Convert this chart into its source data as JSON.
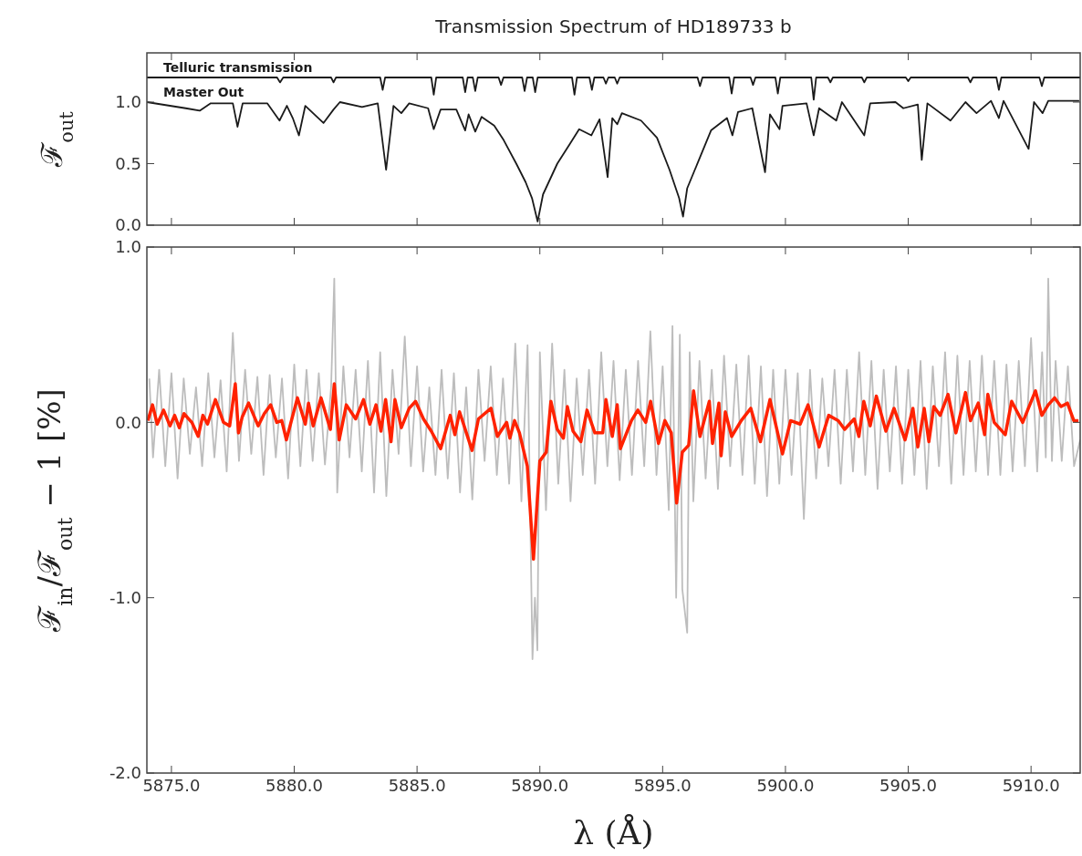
{
  "chart_data": [
    {
      "type": "line",
      "title": "Transmission Spectrum of HD189733 b",
      "ylabel": "ℱ$_{out}$",
      "xlim": [
        5874,
        5912
      ],
      "ylim": [
        0,
        1.4
      ],
      "xticks": [
        {
          "value": 5875,
          "label": null
        },
        {
          "value": 5880,
          "label": null
        },
        {
          "value": 5885,
          "label": null
        },
        {
          "value": 5890,
          "label": null
        },
        {
          "value": 5895,
          "label": null
        },
        {
          "value": 5900,
          "label": null
        },
        {
          "value": 5905,
          "label": null
        },
        {
          "value": 5910,
          "label": null
        }
      ],
      "yticks": [
        {
          "value": 0,
          "label": "0.0"
        },
        {
          "value": 0.5,
          "label": "0.5"
        },
        {
          "value": 1,
          "label": "1.0"
        }
      ],
      "tick_labels": "y",
      "series": [
        {
          "name": "Telluric transmission",
          "color": "#1a1a1a",
          "x": [
            5874,
            5879.3,
            5879.42,
            5879.55,
            5881.5,
            5881.6,
            5881.7,
            5883.5,
            5883.6,
            5883.7,
            5885.58,
            5885.68,
            5885.78,
            5886.86,
            5886.96,
            5887.06,
            5887.27,
            5887.37,
            5887.47,
            5888.32,
            5888.42,
            5888.52,
            5889.28,
            5889.38,
            5889.48,
            5889.71,
            5889.81,
            5889.91,
            5891.31,
            5891.41,
            5891.51,
            5892.02,
            5892.12,
            5892.22,
            5892.59,
            5892.69,
            5892.79,
            5893.05,
            5893.15,
            5893.25,
            5896.42,
            5896.52,
            5896.62,
            5897.71,
            5897.81,
            5897.91,
            5898.58,
            5898.68,
            5898.78,
            5899.59,
            5899.69,
            5899.79,
            5901.05,
            5901.15,
            5901.25,
            5901.73,
            5901.83,
            5901.93,
            5903.11,
            5903.21,
            5903.31,
            5904.9,
            5905,
            5905.1,
            5907.43,
            5907.53,
            5907.63,
            5908.59,
            5908.69,
            5908.79,
            5910.34,
            5910.44,
            5910.54,
            5912
          ],
          "values": [
            1.2,
            1.2,
            1.16,
            1.2,
            1.2,
            1.16,
            1.2,
            1.2,
            1.1,
            1.2,
            1.2,
            1.06,
            1.2,
            1.2,
            1.08,
            1.2,
            1.2,
            1.09,
            1.2,
            1.2,
            1.14,
            1.2,
            1.2,
            1.09,
            1.2,
            1.2,
            1.08,
            1.2,
            1.2,
            1.06,
            1.2,
            1.2,
            1.1,
            1.2,
            1.2,
            1.15,
            1.2,
            1.2,
            1.15,
            1.2,
            1.2,
            1.13,
            1.2,
            1.2,
            1.07,
            1.2,
            1.2,
            1.14,
            1.2,
            1.2,
            1.07,
            1.2,
            1.2,
            1.02,
            1.2,
            1.2,
            1.16,
            1.2,
            1.2,
            1.16,
            1.2,
            1.2,
            1.17,
            1.2,
            1.2,
            1.16,
            1.2,
            1.2,
            1.1,
            1.2,
            1.2,
            1.13,
            1.2,
            1.2
          ]
        },
        {
          "name": "Master Out",
          "color": "#1a1a1a",
          "x": [
            5874,
            5875.58,
            5876.15,
            5876.6,
            5877.5,
            5877.69,
            5877.9,
            5878.9,
            5879.4,
            5879.7,
            5879.94,
            5880.19,
            5880.45,
            5881.19,
            5881.6,
            5881.86,
            5882.76,
            5883.4,
            5883.74,
            5884.04,
            5884.36,
            5884.68,
            5885.45,
            5885.68,
            5885.96,
            5886.6,
            5886.96,
            5887.1,
            5887.37,
            5887.63,
            5888.14,
            5888.53,
            5889.04,
            5889.42,
            5889.68,
            5889.91,
            5890.13,
            5890.71,
            5891.22,
            5891.6,
            5892.1,
            5892.43,
            5892.76,
            5892.95,
            5893.15,
            5893.34,
            5894.12,
            5894.77,
            5895.28,
            5895.67,
            5895.83,
            5896,
            5896.58,
            5896.97,
            5897.62,
            5897.84,
            5898.07,
            5898.65,
            5899.17,
            5899.37,
            5899.76,
            5899.88,
            5900.86,
            5901.15,
            5901.37,
            5902.07,
            5902.3,
            5903.21,
            5903.45,
            5904.48,
            5904.8,
            5905.39,
            5905.55,
            5905.78,
            5906.72,
            5907.33,
            5907.78,
            5908.37,
            5908.69,
            5908.88,
            5909.9,
            5910.12,
            5910.47,
            5910.7,
            5911.96
          ],
          "values": [
            1,
            0.95,
            0.93,
            0.99,
            0.99,
            0.8,
            0.99,
            0.99,
            0.85,
            0.97,
            0.87,
            0.73,
            0.97,
            0.83,
            0.94,
            1,
            0.96,
            0.99,
            0.45,
            0.97,
            0.91,
            0.99,
            0.95,
            0.78,
            0.94,
            0.94,
            0.77,
            0.9,
            0.76,
            0.88,
            0.81,
            0.69,
            0.5,
            0.35,
            0.22,
            0.03,
            0.25,
            0.5,
            0.66,
            0.78,
            0.73,
            0.86,
            0.39,
            0.87,
            0.82,
            0.91,
            0.85,
            0.71,
            0.45,
            0.22,
            0.07,
            0.3,
            0.58,
            0.77,
            0.87,
            0.73,
            0.92,
            0.95,
            0.43,
            0.9,
            0.78,
            0.97,
            0.99,
            0.73,
            0.95,
            0.85,
            1,
            0.73,
            0.99,
            1,
            0.95,
            0.98,
            0.53,
            0.99,
            0.85,
            1,
            0.91,
            1.01,
            0.87,
            1.01,
            0.62,
            1,
            0.91,
            1.01,
            1.01
          ]
        }
      ]
    },
    {
      "type": "line",
      "xlabel": "λ (Å)",
      "ylabel": "ℱ$_{in}$/ℱ$_{out}$ − 1 [%]",
      "xlim": [
        5874,
        5912
      ],
      "ylim": [
        -2,
        1
      ],
      "xticks": [
        {
          "value": 5875,
          "label": "5875.0"
        },
        {
          "value": 5880,
          "label": "5880.0"
        },
        {
          "value": 5885,
          "label": "5885.0"
        },
        {
          "value": 5890,
          "label": "5890.0"
        },
        {
          "value": 5895,
          "label": "5895.0"
        },
        {
          "value": 5900,
          "label": "5900.0"
        },
        {
          "value": 5905,
          "label": "5905.0"
        },
        {
          "value": 5910,
          "label": "5910.0"
        }
      ],
      "yticks": [
        {
          "value": -2,
          "label": "-2.0"
        },
        {
          "value": -1,
          "label": "-1.0"
        },
        {
          "value": 0,
          "label": "0.0"
        },
        {
          "value": 1,
          "label": "1.0"
        }
      ],
      "series": [
        {
          "color": "#bdbdbd",
          "x": [
            5874.1,
            5874.25,
            5874.5,
            5874.75,
            5875,
            5875.25,
            5875.5,
            5875.75,
            5876,
            5876.25,
            5876.5,
            5876.75,
            5877,
            5877.25,
            5877.5,
            5877.75,
            5878,
            5878.25,
            5878.5,
            5878.75,
            5879,
            5879.25,
            5879.5,
            5879.75,
            5880,
            5880.25,
            5880.5,
            5880.75,
            5881,
            5881.25,
            5881.5,
            5881.63,
            5881.75,
            5882,
            5882.25,
            5882.5,
            5882.75,
            5883,
            5883.25,
            5883.5,
            5883.75,
            5884,
            5884.25,
            5884.5,
            5884.75,
            5885,
            5885.25,
            5885.5,
            5885.75,
            5886,
            5886.25,
            5886.5,
            5886.75,
            5887,
            5887.25,
            5887.5,
            5887.75,
            5888,
            5888.25,
            5888.5,
            5888.75,
            5889,
            5889.25,
            5889.5,
            5889.7,
            5889.8,
            5889.9,
            5890,
            5890.25,
            5890.5,
            5890.75,
            5891,
            5891.25,
            5891.5,
            5891.75,
            5892,
            5892.25,
            5892.5,
            5892.75,
            5893,
            5893.25,
            5893.5,
            5893.75,
            5894,
            5894.25,
            5894.5,
            5894.75,
            5895,
            5895.25,
            5895.4,
            5895.55,
            5895.7,
            5895.8,
            5896,
            5896.1,
            5896.25,
            5896.5,
            5896.75,
            5897,
            5897.25,
            5897.5,
            5897.75,
            5898,
            5898.25,
            5898.5,
            5898.75,
            5899,
            5899.25,
            5899.5,
            5899.75,
            5900,
            5900.25,
            5900.5,
            5900.75,
            5901,
            5901.25,
            5901.5,
            5901.75,
            5902,
            5902.25,
            5902.5,
            5902.75,
            5903,
            5903.25,
            5903.5,
            5903.75,
            5904,
            5904.25,
            5904.5,
            5904.75,
            5905,
            5905.25,
            5905.5,
            5905.75,
            5906,
            5906.25,
            5906.5,
            5906.75,
            5907,
            5907.25,
            5907.5,
            5907.75,
            5908,
            5908.25,
            5908.5,
            5908.75,
            5909,
            5909.25,
            5909.5,
            5909.75,
            5910,
            5910.25,
            5910.45,
            5910.6,
            5910.7,
            5910.85,
            5911,
            5911.25,
            5911.5,
            5911.75,
            5912
          ],
          "values": [
            0.25,
            -0.2,
            0.3,
            -0.25,
            0.28,
            -0.32,
            0.25,
            -0.18,
            0.2,
            -0.25,
            0.28,
            -0.2,
            0.24,
            -0.28,
            0.51,
            -0.22,
            0.3,
            -0.18,
            0.26,
            -0.3,
            0.27,
            -0.2,
            0.25,
            -0.32,
            0.33,
            -0.25,
            0.3,
            -0.22,
            0.28,
            -0.24,
            0.2,
            0.82,
            -0.4,
            0.32,
            -0.2,
            0.3,
            -0.28,
            0.35,
            -0.4,
            0.4,
            -0.42,
            0.3,
            -0.18,
            0.49,
            -0.25,
            0.32,
            -0.28,
            0.2,
            -0.3,
            0.3,
            -0.32,
            0.28,
            -0.4,
            0.2,
            -0.44,
            0.3,
            -0.22,
            0.32,
            -0.3,
            0.25,
            -0.35,
            0.45,
            -0.45,
            0.44,
            -1.35,
            -1,
            -1.3,
            0.4,
            -0.5,
            0.45,
            -0.35,
            0.3,
            -0.45,
            0.25,
            -0.3,
            0.3,
            -0.35,
            0.4,
            -0.25,
            0.35,
            -0.33,
            0.3,
            -0.3,
            0.35,
            -0.25,
            0.52,
            -0.3,
            0.32,
            -0.5,
            0.55,
            -1,
            0.5,
            -0.95,
            -1.2,
            0.4,
            -0.45,
            0.35,
            -0.32,
            0.3,
            -0.38,
            0.38,
            -0.25,
            0.33,
            -0.3,
            0.38,
            -0.35,
            0.32,
            -0.42,
            0.3,
            -0.35,
            0.3,
            -0.3,
            0.28,
            -0.55,
            0.3,
            -0.32,
            0.25,
            -0.25,
            0.3,
            -0.35,
            0.3,
            -0.28,
            0.4,
            -0.3,
            0.35,
            -0.38,
            0.3,
            -0.28,
            0.32,
            -0.35,
            0.3,
            -0.3,
            0.35,
            -0.38,
            0.32,
            -0.25,
            0.4,
            -0.35,
            0.38,
            -0.3,
            0.35,
            -0.28,
            0.38,
            -0.3,
            0.35,
            -0.3,
            0.33,
            -0.28,
            0.35,
            -0.25,
            0.48,
            -0.28,
            0.4,
            -0.2,
            0.82,
            -0.22,
            0.35,
            -0.22,
            0.32,
            -0.25,
            -0.1
          ]
        },
        {
          "color": "#ff2200",
          "x": [
            5874.04,
            5874.23,
            5874.42,
            5874.68,
            5874.94,
            5875.13,
            5875.32,
            5875.51,
            5875.83,
            5876.09,
            5876.28,
            5876.47,
            5876.79,
            5877.12,
            5877.37,
            5877.6,
            5877.73,
            5877.88,
            5878.14,
            5878.53,
            5878.78,
            5879.04,
            5879.29,
            5879.49,
            5879.68,
            5880.13,
            5880.45,
            5880.58,
            5880.77,
            5881.09,
            5881.47,
            5881.63,
            5881.83,
            5882.12,
            5882.5,
            5882.82,
            5883.08,
            5883.33,
            5883.53,
            5883.72,
            5883.94,
            5884.1,
            5884.36,
            5884.68,
            5884.94,
            5885.26,
            5885.58,
            5885.96,
            5886.35,
            5886.54,
            5886.73,
            5887.24,
            5887.5,
            5888.01,
            5888.27,
            5888.65,
            5888.78,
            5888.97,
            5889.17,
            5889.49,
            5889.74,
            5890,
            5890.26,
            5890.45,
            5890.71,
            5890.96,
            5891.12,
            5891.35,
            5891.67,
            5891.92,
            5892.24,
            5892.56,
            5892.69,
            5892.95,
            5893.15,
            5893.28,
            5893.73,
            5893.99,
            5894.31,
            5894.51,
            5894.83,
            5895.09,
            5895.35,
            5895.57,
            5895.8,
            5896.06,
            5896.26,
            5896.52,
            5896.9,
            5897.03,
            5897.29,
            5897.38,
            5897.55,
            5897.81,
            5898.2,
            5898.59,
            5898.98,
            5899.37,
            5899.88,
            5900.21,
            5900.6,
            5900.92,
            5901.37,
            5901.76,
            5902.15,
            5902.41,
            5902.8,
            5902.99,
            5903.19,
            5903.45,
            5903.7,
            5904.09,
            5904.42,
            5904.87,
            5905.19,
            5905.39,
            5905.65,
            5905.84,
            5906.04,
            5906.3,
            5906.62,
            5906.94,
            5907.33,
            5907.53,
            5907.85,
            5908.11,
            5908.24,
            5908.5,
            5908.95,
            5909.21,
            5909.66,
            5910.18,
            5910.44,
            5910.7,
            5910.96,
            5911.22,
            5911.48,
            5911.74,
            5911.93
          ],
          "values": [
            0.01,
            0.1,
            -0.01,
            0.07,
            -0.02,
            0.04,
            -0.03,
            0.05,
            0,
            -0.08,
            0.04,
            -0.01,
            0.13,
            0,
            -0.02,
            0.22,
            -0.06,
            0.03,
            0.11,
            -0.02,
            0.05,
            0.1,
            0,
            0.01,
            -0.1,
            0.14,
            -0.01,
            0.11,
            -0.02,
            0.14,
            -0.04,
            0.22,
            -0.1,
            0.1,
            0.02,
            0.13,
            -0.01,
            0.1,
            -0.05,
            0.13,
            -0.11,
            0.13,
            -0.03,
            0.08,
            0.12,
            0.02,
            -0.05,
            -0.15,
            0.04,
            -0.07,
            0.06,
            -0.16,
            0.02,
            0.08,
            -0.08,
            0,
            -0.09,
            0.01,
            -0.06,
            -0.25,
            -0.78,
            -0.22,
            -0.17,
            0.12,
            -0.04,
            -0.09,
            0.09,
            -0.05,
            -0.11,
            0.07,
            -0.06,
            -0.06,
            0.13,
            -0.08,
            0.1,
            -0.15,
            0.01,
            0.07,
            0,
            0.12,
            -0.12,
            0.01,
            -0.06,
            -0.46,
            -0.17,
            -0.13,
            0.18,
            -0.08,
            0.12,
            -0.12,
            0.11,
            -0.19,
            0.06,
            -0.08,
            0.01,
            0.08,
            -0.11,
            0.13,
            -0.18,
            0.01,
            -0.01,
            0.1,
            -0.14,
            0.04,
            0.01,
            -0.04,
            0.02,
            -0.08,
            0.12,
            -0.02,
            0.15,
            -0.05,
            0.08,
            -0.1,
            0.08,
            -0.14,
            0.08,
            -0.11,
            0.09,
            0.04,
            0.16,
            -0.06,
            0.17,
            0.01,
            0.11,
            -0.07,
            0.16,
            0,
            -0.07,
            0.12,
            0,
            0.18,
            0.04,
            0.1,
            0.14,
            0.09,
            0.11,
            0.01,
            0.01
          ]
        }
      ]
    }
  ]
}
